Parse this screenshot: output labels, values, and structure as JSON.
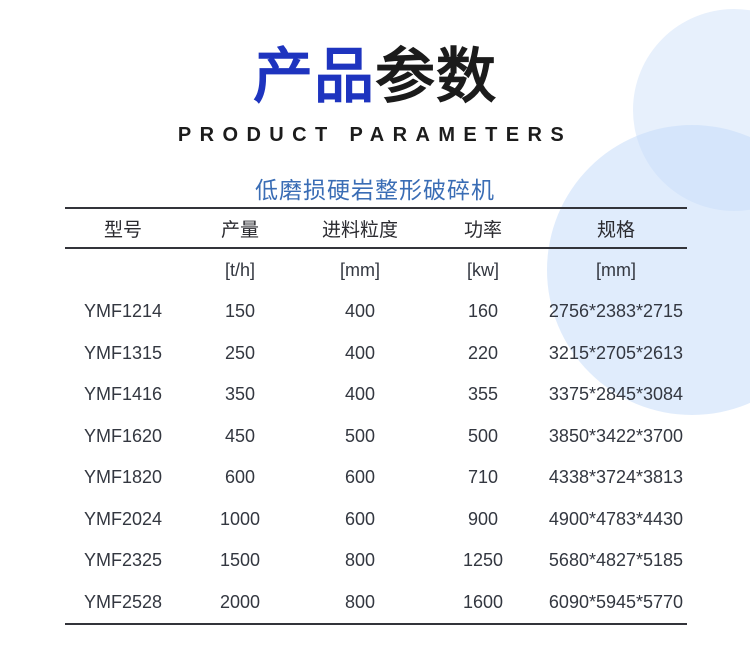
{
  "page": {
    "title_primary": "产品",
    "title_secondary": "参数",
    "subtitle_en": "PRODUCT PARAMETERS"
  },
  "table": {
    "title": "低磨损硬岩整形破碎机",
    "columns": [
      "型号",
      "产量",
      "进料粒度",
      "功率",
      "规格"
    ],
    "units": [
      "",
      "[t/h]",
      "[mm]",
      "[kw]",
      "[mm]"
    ],
    "rows": [
      [
        "YMF1214",
        "150",
        "400",
        "160",
        "2756*2383*2715"
      ],
      [
        "YMF1315",
        "250",
        "400",
        "220",
        "3215*2705*2613"
      ],
      [
        "YMF1416",
        "350",
        "400",
        "355",
        "3375*2845*3084"
      ],
      [
        "YMF1620",
        "450",
        "500",
        "500",
        "3850*3422*3700"
      ],
      [
        "YMF1820",
        "600",
        "600",
        "710",
        "4338*3724*3813"
      ],
      [
        "YMF2024",
        "1000",
        "600",
        "900",
        "4900*4783*4430"
      ],
      [
        "YMF2325",
        "1500",
        "800",
        "1250",
        "5680*4827*5185"
      ],
      [
        "YMF2528",
        "2000",
        "800",
        "1600",
        "6090*5945*5770"
      ]
    ]
  },
  "colors": {
    "title_blue": "#1e34bf",
    "title_black": "#1b1b1b",
    "caption_blue": "#3a6db5",
    "rule_dark": "#33343a",
    "text_dark": "#333740",
    "circle_light_blue": "#e7effc",
    "circle_medium_blue": "#dfeafb"
  }
}
